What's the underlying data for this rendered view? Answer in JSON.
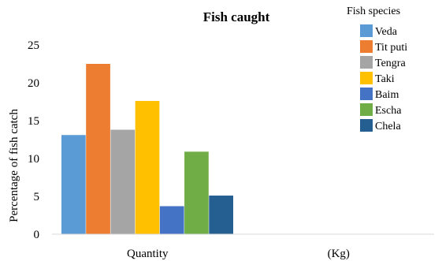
{
  "chart_data": {
    "type": "bar",
    "title": "Fish caught",
    "ylabel": "Percentage of  fish catch",
    "xlabel": "",
    "categories": [
      "Quantity",
      "(Kg)"
    ],
    "ylim": [
      0,
      25
    ],
    "yticks": [
      0,
      5,
      10,
      15,
      20,
      25
    ],
    "grid": false,
    "legend_title": "Fish  species",
    "legend_position": "top-right",
    "series": [
      {
        "name": "Veda",
        "color": "#5B9BD5",
        "values": [
          13.1,
          null
        ]
      },
      {
        "name": "Tit puti",
        "color": "#ED7D31",
        "values": [
          22.5,
          null
        ]
      },
      {
        "name": "Tengra",
        "color": "#A5A5A5",
        "values": [
          13.8,
          null
        ]
      },
      {
        "name": "Taki",
        "color": "#FFC000",
        "values": [
          17.6,
          null
        ]
      },
      {
        "name": "Baim",
        "color": "#4472C4",
        "values": [
          3.7,
          null
        ]
      },
      {
        "name": "Escha",
        "color": "#70AD47",
        "values": [
          10.9,
          null
        ]
      },
      {
        "name": "Chela",
        "color": "#255E91",
        "values": [
          5.1,
          null
        ]
      }
    ]
  }
}
